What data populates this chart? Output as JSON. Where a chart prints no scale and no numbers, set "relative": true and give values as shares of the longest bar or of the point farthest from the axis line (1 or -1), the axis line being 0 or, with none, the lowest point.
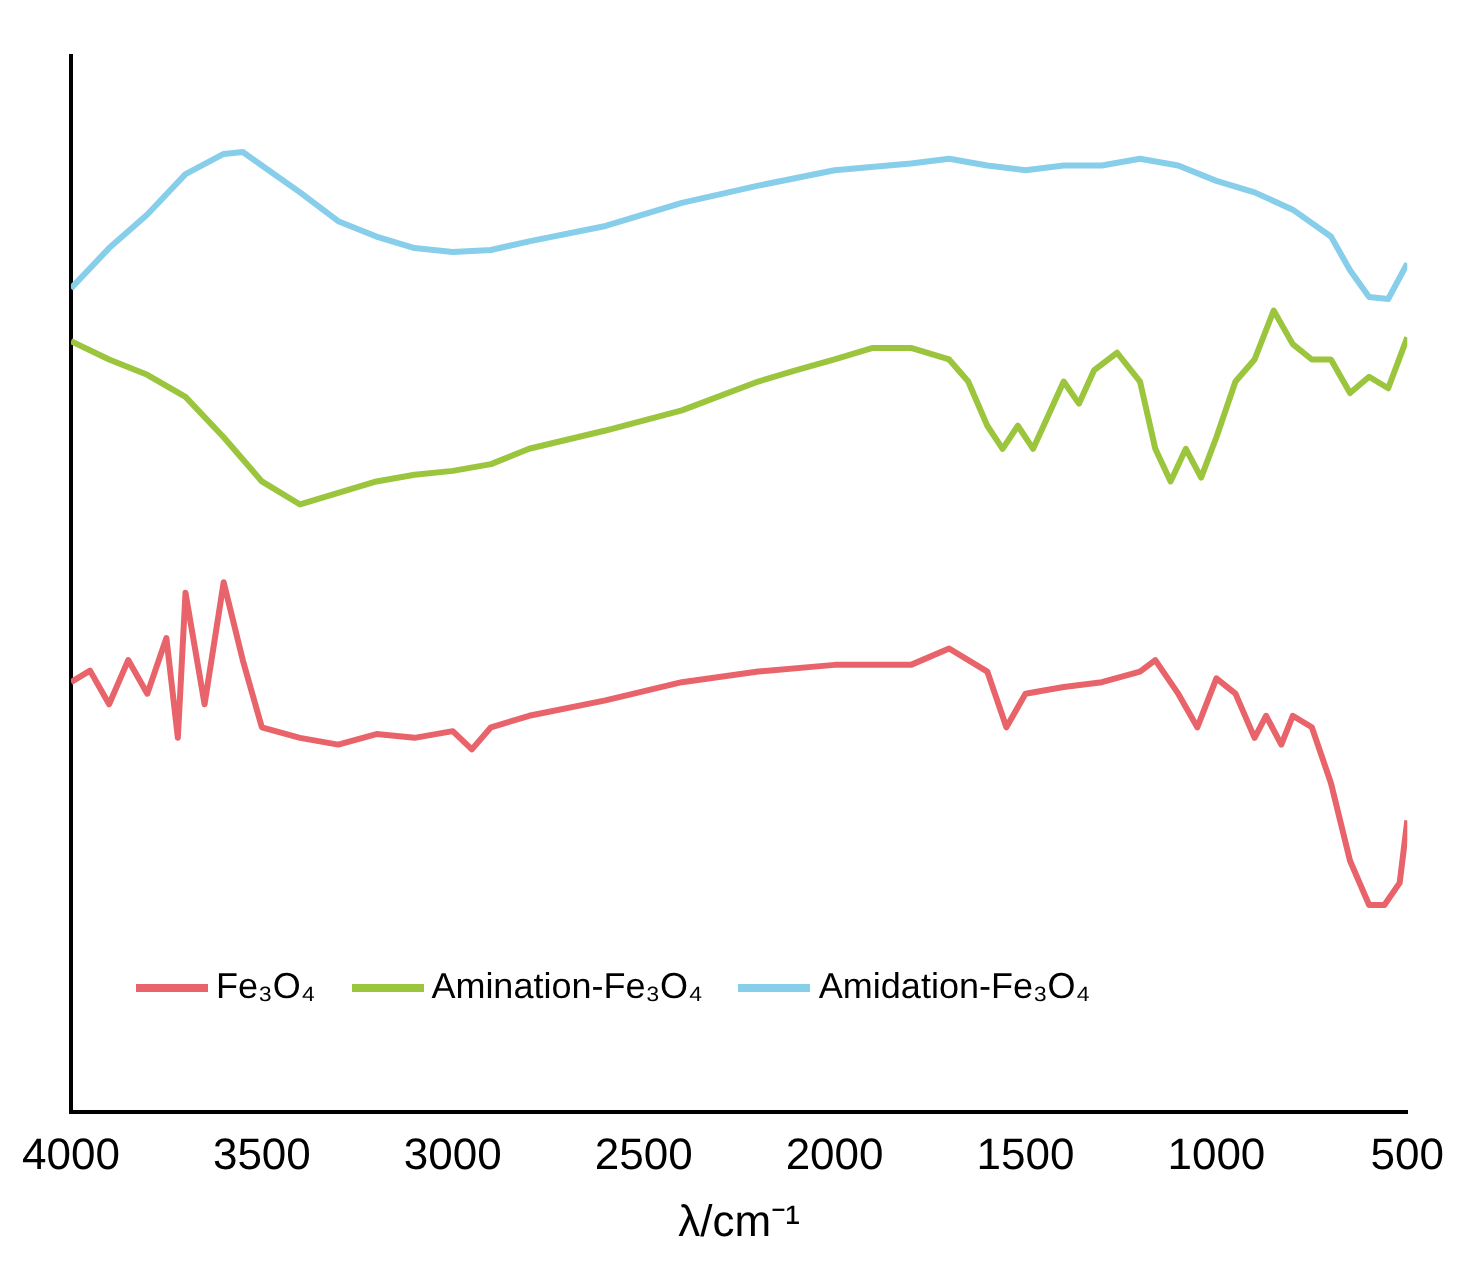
{
  "chart_data": {
    "type": "line",
    "relative": true,
    "xlabel": "λ/cm⁻¹",
    "xlim": [
      4000,
      500
    ],
    "xticks": [
      4000,
      3500,
      3000,
      2500,
      2000,
      1500,
      1000,
      500
    ],
    "grid": false,
    "legend": "bottom",
    "marker": "none",
    "line_style": "solid",
    "series": [
      {
        "name": "Fe₃O₄",
        "color": "#e8646a",
        "x": [
          4000,
          3950,
          3900,
          3850,
          3800,
          3750,
          3720,
          3700,
          3650,
          3600,
          3550,
          3500,
          3400,
          3300,
          3200,
          3100,
          3000,
          2950,
          2900,
          2800,
          2600,
          2400,
          2200,
          2000,
          1800,
          1700,
          1600,
          1550,
          1500,
          1400,
          1300,
          1200,
          1160,
          1100,
          1050,
          1000,
          950,
          900,
          870,
          830,
          800,
          750,
          700,
          650,
          600,
          560,
          520,
          500
        ],
        "values": [
          0.448,
          0.46,
          0.425,
          0.471,
          0.436,
          0.494,
          0.39,
          0.541,
          0.425,
          0.552,
          0.471,
          0.401,
          0.39,
          0.383,
          0.394,
          0.39,
          0.397,
          0.378,
          0.401,
          0.413,
          0.429,
          0.448,
          0.459,
          0.466,
          0.466,
          0.483,
          0.459,
          0.401,
          0.436,
          0.443,
          0.448,
          0.459,
          0.471,
          0.436,
          0.401,
          0.452,
          0.436,
          0.39,
          0.413,
          0.383,
          0.413,
          0.401,
          0.343,
          0.262,
          0.216,
          0.216,
          0.239,
          0.304
        ]
      },
      {
        "name": "Amination-Fe₃O₄",
        "color": "#9bc53d",
        "x": [
          4000,
          3900,
          3800,
          3700,
          3600,
          3500,
          3400,
          3300,
          3200,
          3100,
          3000,
          2900,
          2800,
          2600,
          2400,
          2200,
          2100,
          2000,
          1900,
          1800,
          1700,
          1650,
          1600,
          1560,
          1520,
          1480,
          1440,
          1400,
          1360,
          1320,
          1260,
          1200,
          1160,
          1120,
          1080,
          1040,
          1000,
          950,
          900,
          850,
          800,
          750,
          700,
          650,
          600,
          550,
          500
        ],
        "values": [
          0.803,
          0.784,
          0.768,
          0.745,
          0.703,
          0.657,
          0.633,
          0.645,
          0.657,
          0.664,
          0.668,
          0.675,
          0.691,
          0.71,
          0.731,
          0.761,
          0.773,
          0.784,
          0.796,
          0.796,
          0.784,
          0.761,
          0.715,
          0.691,
          0.715,
          0.691,
          0.726,
          0.761,
          0.738,
          0.773,
          0.791,
          0.761,
          0.691,
          0.657,
          0.691,
          0.661,
          0.703,
          0.761,
          0.784,
          0.835,
          0.8,
          0.784,
          0.784,
          0.749,
          0.766,
          0.754,
          0.807
        ]
      },
      {
        "name": "Amidation-Fe₃O₄",
        "color": "#87ceeb",
        "x": [
          4000,
          3900,
          3800,
          3700,
          3600,
          3550,
          3500,
          3400,
          3300,
          3200,
          3100,
          3000,
          2900,
          2800,
          2600,
          2400,
          2200,
          2000,
          1800,
          1700,
          1600,
          1500,
          1400,
          1300,
          1200,
          1100,
          1000,
          900,
          800,
          700,
          650,
          600,
          550,
          500
        ],
        "values": [
          0.858,
          0.9,
          0.935,
          0.977,
          0.998,
          1.0,
          0.986,
          0.958,
          0.928,
          0.912,
          0.9,
          0.896,
          0.898,
          0.907,
          0.923,
          0.947,
          0.965,
          0.981,
          0.988,
          0.993,
          0.986,
          0.981,
          0.986,
          0.986,
          0.993,
          0.986,
          0.97,
          0.958,
          0.94,
          0.912,
          0.877,
          0.849,
          0.847,
          0.884
        ]
      }
    ]
  }
}
